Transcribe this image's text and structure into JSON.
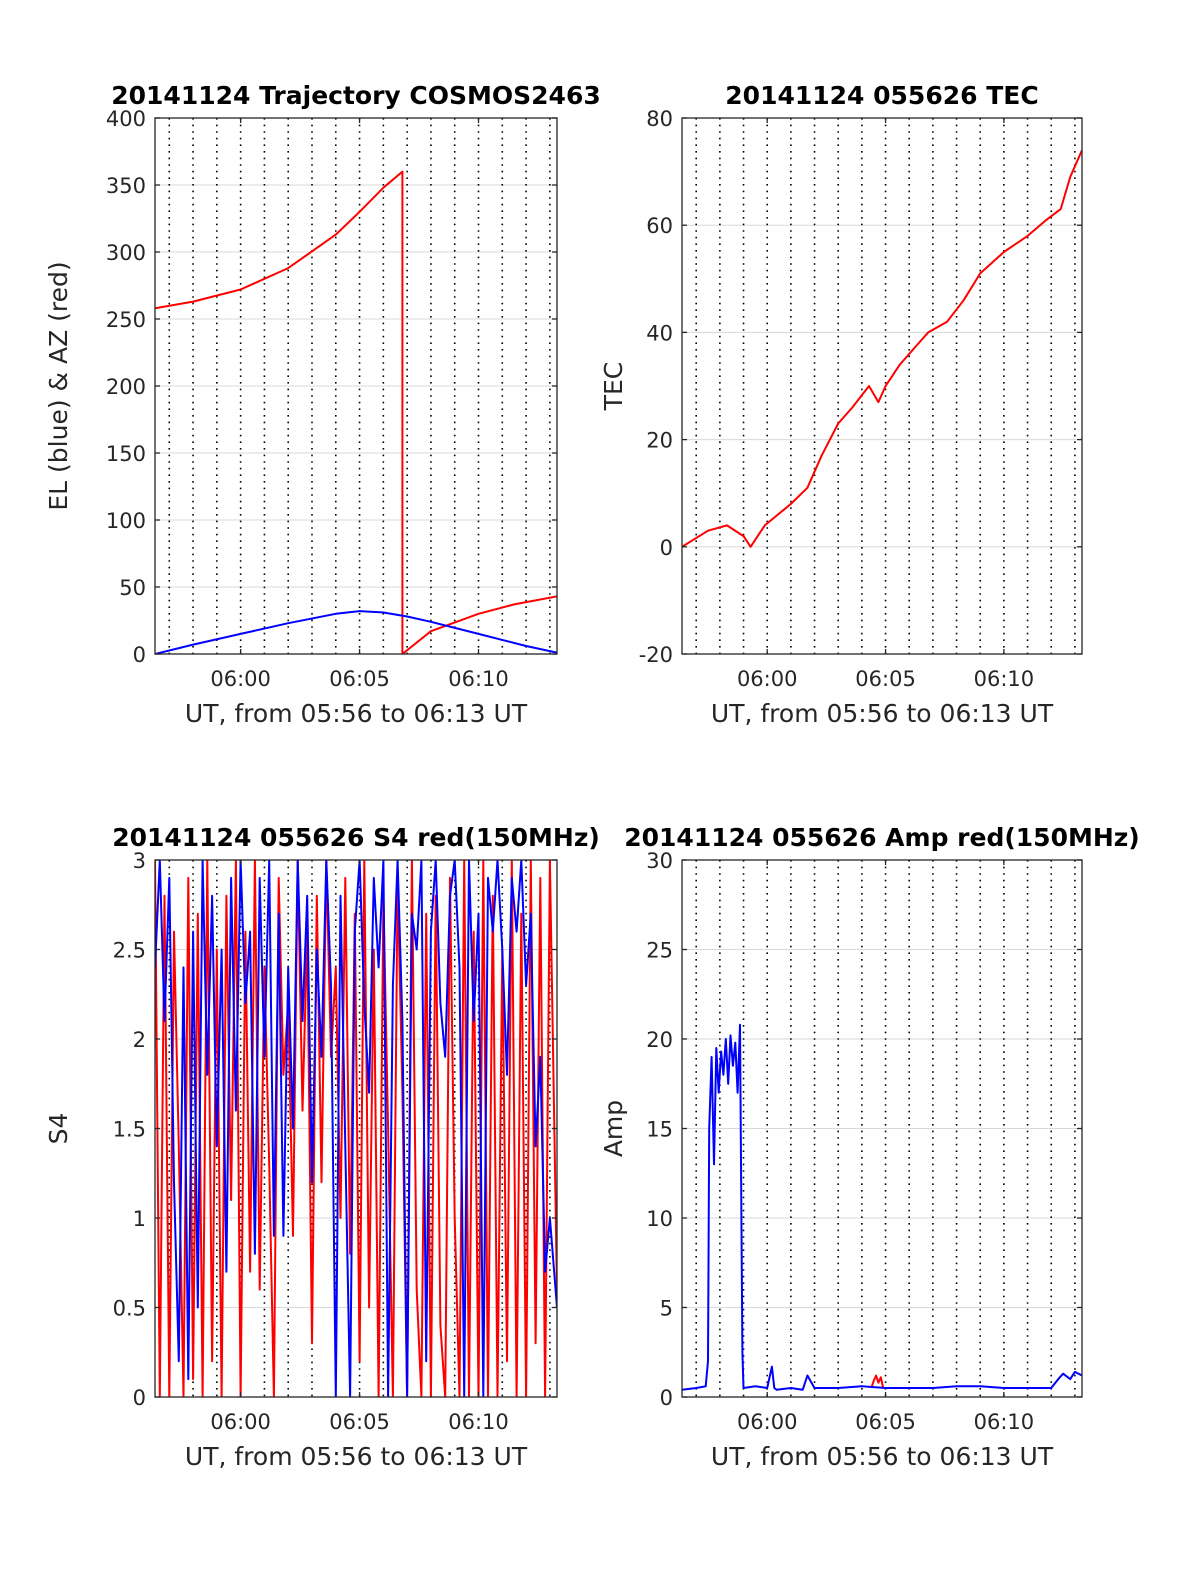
{
  "colors": {
    "red": "#ff0000",
    "blue": "#0000ff",
    "grid": "#d9d9d9",
    "axis": "#262626"
  },
  "chart_data": [
    {
      "type": "line",
      "title": "20141124 Trajectory COSMOS2463",
      "xlabel": "UT, from 05:56 to 06:13 UT",
      "ylabel": "EL (blue) & AZ (red)",
      "xlim": [
        356.4,
        373.3
      ],
      "ylim": [
        0,
        400
      ],
      "xticks": [
        360,
        365,
        370
      ],
      "xtick_labels": [
        "06:00",
        "06:05",
        "06:10"
      ],
      "yticks": [
        0,
        50,
        100,
        150,
        200,
        250,
        300,
        350,
        400
      ],
      "ytick_labels": [
        "0",
        "50",
        "100",
        "150",
        "200",
        "250",
        "300",
        "350",
        "400"
      ],
      "grid": true,
      "series": [
        {
          "color": "red",
          "x": [
            356.4,
            358,
            360,
            362,
            364,
            365,
            366,
            366.8,
            366.8,
            368,
            370,
            371.5,
            373.3
          ],
          "y": [
            258,
            263,
            272,
            288,
            313,
            330,
            348,
            360,
            0,
            17,
            30,
            37,
            43
          ]
        },
        {
          "color": "blue",
          "x": [
            356.4,
            358,
            360,
            362,
            364,
            365,
            366,
            367,
            368,
            370,
            372,
            373.3
          ],
          "y": [
            0,
            7,
            15,
            23,
            30,
            32,
            31,
            28,
            24,
            15,
            6,
            1
          ]
        }
      ]
    },
    {
      "type": "line",
      "title": "20141124 055626 TEC",
      "xlabel": "UT, from 05:56 to 06:13 UT",
      "ylabel": "TEC",
      "xlim": [
        356.4,
        373.3
      ],
      "ylim": [
        -20,
        80
      ],
      "xticks": [
        360,
        365,
        370
      ],
      "xtick_labels": [
        "06:00",
        "06:05",
        "06:10"
      ],
      "yticks": [
        -20,
        0,
        20,
        40,
        60,
        80
      ],
      "ytick_labels": [
        "-20",
        "0",
        "20",
        "40",
        "60",
        "80"
      ],
      "grid": true,
      "series": [
        {
          "color": "red",
          "x": [
            356.4,
            357.5,
            358.3,
            359.0,
            359.3,
            359.9,
            361.0,
            361.7,
            362.3,
            363.0,
            363.6,
            364.3,
            364.7,
            365.0,
            365.6,
            366.4,
            366.8,
            367.6,
            368.3,
            369.0,
            370.0,
            371.0,
            371.8,
            372.4,
            372.8,
            373.3
          ],
          "y": [
            0,
            3,
            4,
            2,
            0,
            4,
            8,
            11,
            17,
            23,
            26,
            30,
            27,
            30,
            34,
            38,
            40,
            42,
            46,
            51,
            55,
            58,
            61,
            63,
            69,
            74
          ]
        }
      ]
    },
    {
      "type": "line",
      "title": "20141124 055626 S4 red(150MHz)",
      "xlabel": "UT, from 05:56 to 06:13 UT",
      "ylabel": "S4",
      "xlim": [
        356.4,
        373.3
      ],
      "ylim": [
        0,
        3
      ],
      "xticks": [
        360,
        365,
        370
      ],
      "xtick_labels": [
        "06:00",
        "06:05",
        "06:10"
      ],
      "yticks": [
        0,
        0.5,
        1,
        1.5,
        2,
        2.5,
        3
      ],
      "ytick_labels": [
        "0",
        "0.5",
        "1",
        "1.5",
        "2",
        "2.5",
        "3"
      ],
      "grid": true,
      "series": [
        {
          "color": "red",
          "x": [
            356.4,
            356.6,
            356.8,
            357.0,
            357.2,
            357.4,
            357.6,
            357.8,
            358.0,
            358.2,
            358.4,
            358.6,
            358.8,
            359.0,
            359.2,
            359.4,
            359.6,
            359.8,
            360.0,
            360.2,
            360.4,
            360.6,
            360.8,
            361.0,
            361.2,
            361.4,
            361.6,
            361.8,
            362.0,
            362.2,
            362.4,
            362.6,
            362.8,
            363.0,
            363.2,
            363.4,
            363.6,
            363.8,
            364.0,
            364.2,
            364.4,
            364.6,
            364.8,
            365.0,
            365.2,
            365.4,
            365.6,
            365.8,
            366.0,
            366.2,
            366.4,
            366.6,
            366.8,
            367.0,
            367.2,
            367.4,
            367.6,
            367.8,
            368.0,
            368.2,
            368.4,
            368.6,
            368.8,
            369.0,
            369.2,
            369.4,
            369.6,
            369.8,
            370.0,
            370.2,
            370.4,
            370.6,
            370.8,
            371.0,
            371.2,
            371.4,
            371.6,
            371.8,
            372.0,
            372.2,
            372.4,
            372.6,
            372.8,
            373.0,
            373.3
          ],
          "y": [
            3,
            0,
            2.8,
            0,
            2.6,
            1.4,
            0,
            2.9,
            0.1,
            2.7,
            0,
            3,
            0.2,
            2.5,
            0,
            2.8,
            1.1,
            3,
            0,
            2.6,
            0.7,
            3,
            0.6,
            2.4,
            1.3,
            0,
            2.9,
            1.8,
            2.2,
            0.9,
            3,
            1.6,
            2.6,
            0.3,
            2.8,
            1.2,
            3,
            1.9,
            2.4,
            1.0,
            2.9,
            0.8,
            2.7,
            0.2,
            3,
            0.5,
            2.5,
            0,
            2.8,
            1.5,
            0,
            2.9,
            1.7,
            0,
            3,
            0.6,
            0,
            2.7,
            0,
            2.8,
            0.4,
            0,
            2.9,
            1.0,
            0,
            3,
            0,
            2.6,
            0,
            3,
            0,
            2.8,
            0,
            2.5,
            0.2,
            3,
            0,
            2.7,
            0,
            3,
            0.3,
            2.9,
            0,
            3,
            0.6
          ]
        },
        {
          "color": "blue",
          "x": [
            356.4,
            356.6,
            356.8,
            357.0,
            357.2,
            357.4,
            357.6,
            357.8,
            358.0,
            358.2,
            358.4,
            358.6,
            358.8,
            359.0,
            359.2,
            359.4,
            359.6,
            359.8,
            360.0,
            360.2,
            360.4,
            360.6,
            360.8,
            361.0,
            361.2,
            361.4,
            361.6,
            361.8,
            362.0,
            362.2,
            362.4,
            362.6,
            362.8,
            363.0,
            363.2,
            363.4,
            363.6,
            363.8,
            364.0,
            364.2,
            364.4,
            364.6,
            364.8,
            365.0,
            365.2,
            365.4,
            365.6,
            365.8,
            366.0,
            366.2,
            366.4,
            366.6,
            366.8,
            367.0,
            367.2,
            367.4,
            367.6,
            367.8,
            368.0,
            368.2,
            368.4,
            368.6,
            368.8,
            369.0,
            369.2,
            369.4,
            369.6,
            369.8,
            370.0,
            370.2,
            370.4,
            370.6,
            370.8,
            371.0,
            371.2,
            371.4,
            371.6,
            371.8,
            372.0,
            372.2,
            372.4,
            372.6,
            372.8,
            373.0,
            373.3
          ],
          "y": [
            2.4,
            3,
            2.1,
            2.9,
            1.2,
            0.2,
            2.4,
            0.1,
            2.6,
            0.5,
            3,
            1.8,
            2.8,
            1.4,
            2.5,
            0.7,
            2.9,
            1.6,
            3,
            2.2,
            2.6,
            0.8,
            2.9,
            1.9,
            3,
            0.9,
            2.7,
            0.9,
            2.4,
            1.5,
            3,
            2.1,
            2.8,
            1.2,
            2.5,
            1.9,
            3,
            2.3,
            0,
            2.8,
            1.4,
            0,
            2.6,
            3,
            2.2,
            1.7,
            2.9,
            2.4,
            3,
            0,
            2.3,
            3,
            2.1,
            0,
            2.7,
            2.5,
            3,
            0.2,
            2.6,
            3,
            2.2,
            1.9,
            2.8,
            3,
            2.4,
            0,
            3,
            2.1,
            2.7,
            0,
            2.9,
            2.6,
            3,
            2.5,
            1.8,
            2.9,
            2.6,
            3,
            2.3,
            2.7,
            1.4,
            1.9,
            0.7,
            1.0,
            0.5
          ]
        }
      ]
    },
    {
      "type": "line",
      "title": "20141124 055626 Amp red(150MHz)",
      "xlabel": "UT, from 05:56 to 06:13 UT",
      "ylabel": "Amp",
      "xlim": [
        356.4,
        373.3
      ],
      "ylim": [
        0,
        30
      ],
      "xticks": [
        360,
        365,
        370
      ],
      "xtick_labels": [
        "06:00",
        "06:05",
        "06:10"
      ],
      "yticks": [
        0,
        5,
        10,
        15,
        20,
        25,
        30
      ],
      "ytick_labels": [
        "0",
        "5",
        "10",
        "15",
        "20",
        "25",
        "30"
      ],
      "grid": true,
      "series": [
        {
          "color": "red",
          "x": [
            364.4,
            364.5,
            364.6,
            364.7,
            364.8,
            364.9
          ],
          "y": [
            0.5,
            0.9,
            1.2,
            0.8,
            1.1,
            0.5
          ]
        },
        {
          "color": "blue",
          "x": [
            356.4,
            357.0,
            357.4,
            357.5,
            357.55,
            357.65,
            357.75,
            357.85,
            357.95,
            358.05,
            358.15,
            358.25,
            358.35,
            358.45,
            358.55,
            358.65,
            358.75,
            358.85,
            358.95,
            359.0,
            359.5,
            360.0,
            360.2,
            360.3,
            360.4,
            361.0,
            361.5,
            361.7,
            362.0,
            363.0,
            364.0,
            365.0,
            366.0,
            367.0,
            368.0,
            369.0,
            370.0,
            371.0,
            372.0,
            372.3,
            372.5,
            372.8,
            373.0,
            373.3
          ],
          "y": [
            0.4,
            0.5,
            0.6,
            2.0,
            15.0,
            19.0,
            13.0,
            19.5,
            17.0,
            19.3,
            18.0,
            20.0,
            17.5,
            20.2,
            18.5,
            19.8,
            17.0,
            20.8,
            2.5,
            0.5,
            0.6,
            0.5,
            1.7,
            0.5,
            0.4,
            0.5,
            0.4,
            1.2,
            0.5,
            0.5,
            0.6,
            0.5,
            0.5,
            0.5,
            0.6,
            0.6,
            0.5,
            0.5,
            0.5,
            1.0,
            1.3,
            1.0,
            1.4,
            1.2
          ]
        }
      ]
    }
  ]
}
